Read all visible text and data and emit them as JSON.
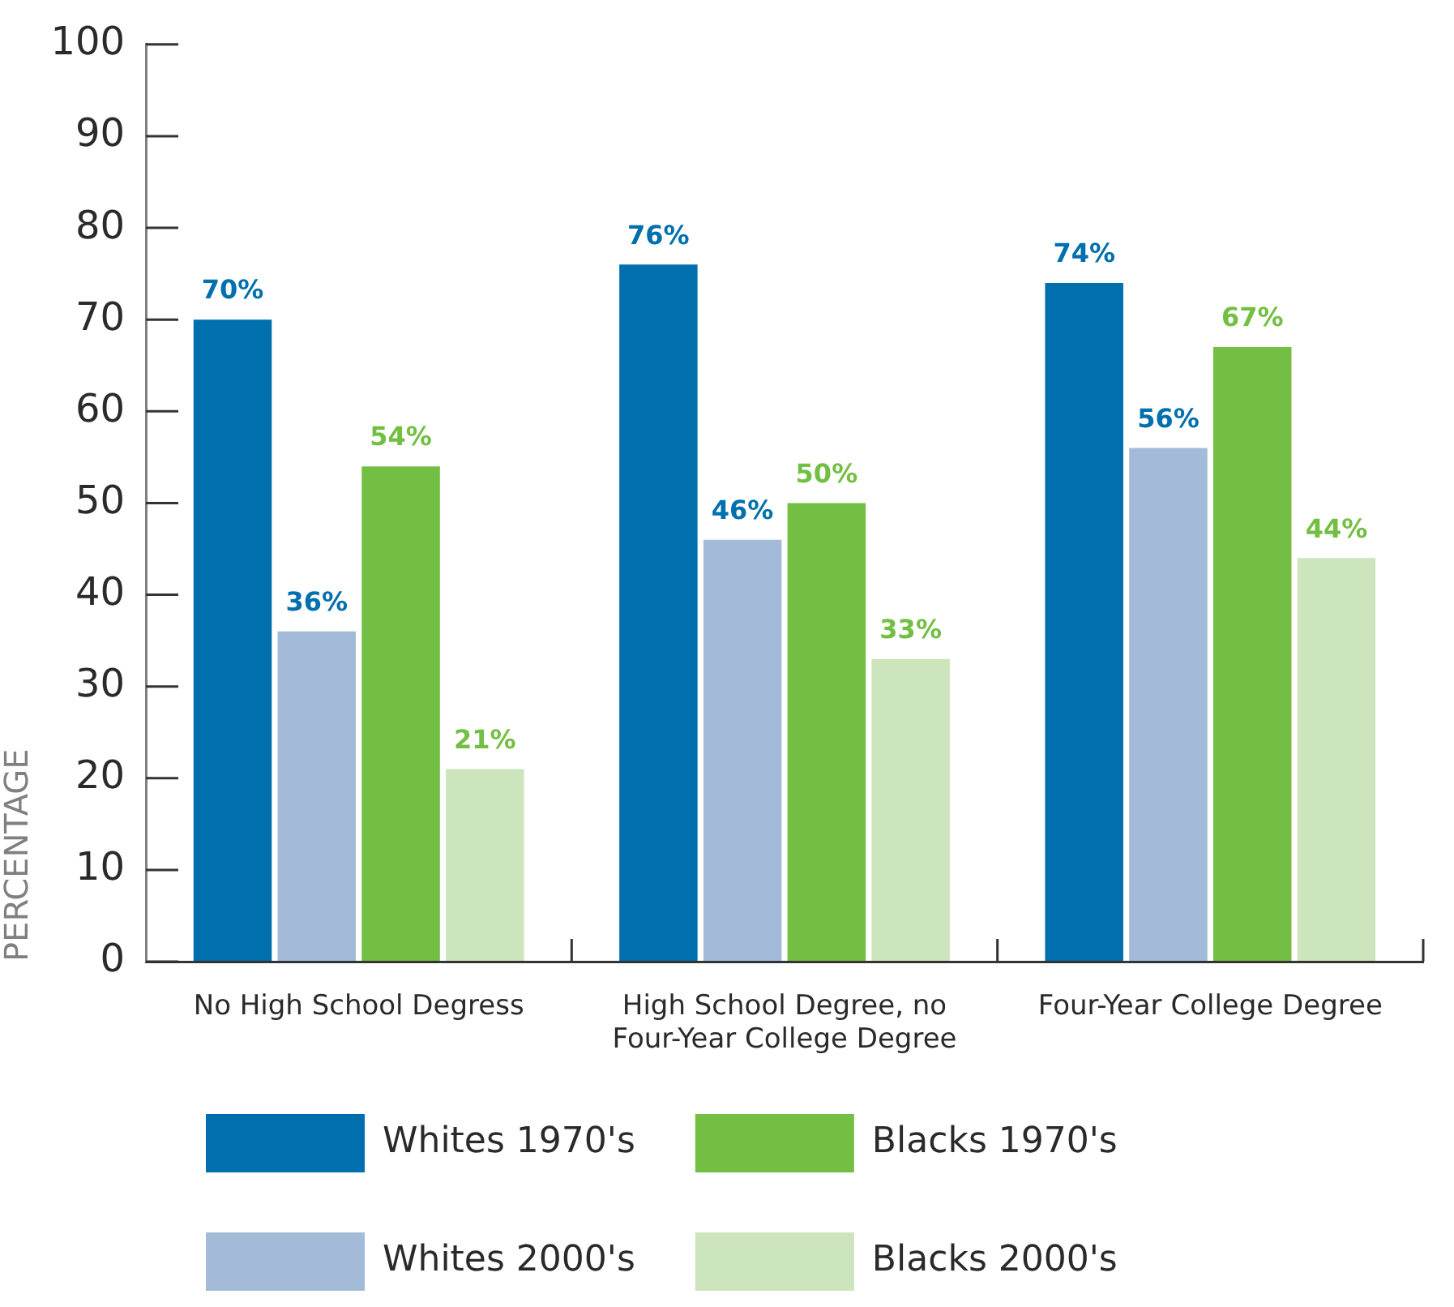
{
  "chart_data": {
    "type": "bar",
    "ylabel": "PERCENTAGE",
    "categories": [
      "No High School Degress",
      "High School Degree, no Four-Year College Degree",
      "Four-Year College Degree"
    ],
    "series": [
      {
        "name": "Whites 1970's",
        "color": "#006fae",
        "values": [
          70,
          76,
          74
        ],
        "value_labels": [
          "70%",
          "76%",
          "74%"
        ]
      },
      {
        "name": "Whites 2000's",
        "color": "#a3bbd9",
        "values": [
          36,
          46,
          56
        ],
        "value_labels": [
          "36%",
          "46%",
          "56%"
        ]
      },
      {
        "name": "Blacks 1970's",
        "color": "#72bf44",
        "values": [
          54,
          50,
          67
        ],
        "value_labels": [
          "54%",
          "50%",
          "67%"
        ]
      },
      {
        "name": "Blacks 2000's",
        "color": "#cde5bd",
        "values": [
          21,
          33,
          44
        ],
        "value_labels": [
          "21%",
          "33%",
          "44%"
        ]
      }
    ],
    "ylim": [
      0,
      100
    ],
    "yticks": [
      0,
      10,
      20,
      30,
      40,
      50,
      60,
      70,
      80,
      90,
      100
    ],
    "legend": "bottom"
  }
}
